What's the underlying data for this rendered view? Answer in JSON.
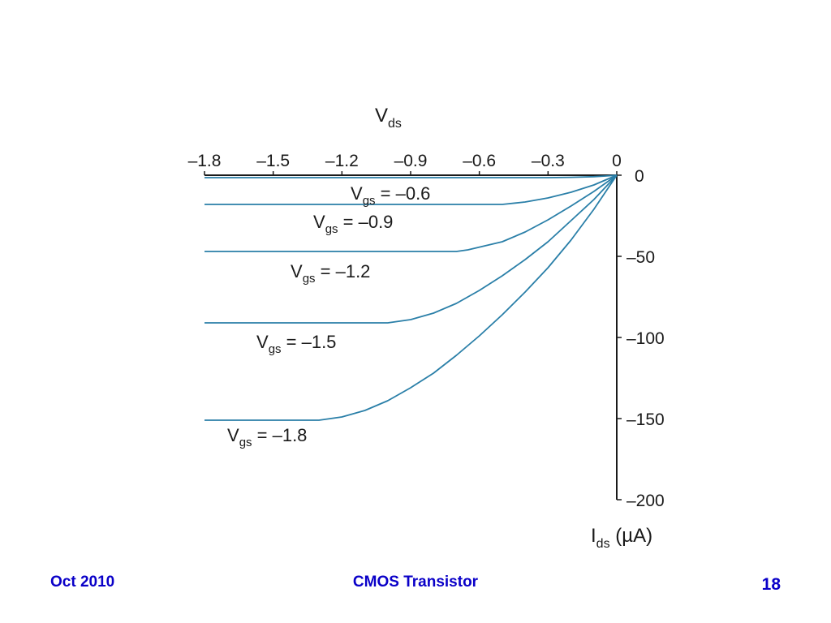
{
  "footer": {
    "date": "Oct 2010",
    "title": "CMOS Transistor",
    "page_number": "18"
  },
  "colors": {
    "curve": "#2a7fa8",
    "axis": "#1a1a1a",
    "footer": "#0a00c8"
  },
  "chart_data": {
    "type": "line",
    "x_axis": {
      "label_main": "V",
      "label_sub": "ds",
      "label_suffix": "",
      "range": [
        -1.8,
        0
      ],
      "position": "top",
      "ticks": [
        -1.8,
        -1.5,
        -1.2,
        -0.9,
        -0.6,
        -0.3,
        0
      ],
      "tick_labels": [
        "–1.8",
        "–1.5",
        "–1.2",
        "–0.9",
        "–0.6",
        "–0.3",
        "0"
      ]
    },
    "y_axis": {
      "label_main": "I",
      "label_sub": "ds",
      "label_suffix": " (µA)",
      "range": [
        -200,
        0
      ],
      "position": "right",
      "ticks": [
        0,
        -50,
        -100,
        -150,
        -200
      ],
      "tick_labels": [
        "0",
        "–50",
        "–100",
        "–150",
        "–200"
      ]
    },
    "legend": "none",
    "grid": false,
    "series": [
      {
        "label_main": "V",
        "label_sub": "gs",
        "label_value": " = –0.6",
        "x": [
          -1.8,
          -0.3,
          -0.2,
          -0.1,
          -0.05,
          0
        ],
        "y": [
          -1.5,
          -1.5,
          -1.3,
          -0.9,
          -0.5,
          0
        ]
      },
      {
        "label_main": "V",
        "label_sub": "gs",
        "label_value": " = –0.9",
        "x": [
          -1.8,
          -0.5,
          -0.4,
          -0.3,
          -0.2,
          -0.1,
          0
        ],
        "y": [
          -18,
          -18,
          -16.5,
          -14,
          -10.5,
          -6,
          0
        ]
      },
      {
        "label_main": "V",
        "label_sub": "gs",
        "label_value": " = –1.2",
        "x": [
          -1.8,
          -0.7,
          -0.65,
          -0.5,
          -0.4,
          -0.3,
          -0.2,
          -0.1,
          0
        ],
        "y": [
          -47,
          -47,
          -46,
          -41,
          -35,
          -27.5,
          -19,
          -10,
          0
        ]
      },
      {
        "label_main": "V",
        "label_sub": "gs",
        "label_value": " = –1.5",
        "x": [
          -1.8,
          -1.0,
          -0.9,
          -0.8,
          -0.7,
          -0.6,
          -0.5,
          -0.4,
          -0.3,
          -0.2,
          -0.1,
          0
        ],
        "y": [
          -91,
          -91,
          -89,
          -85,
          -79,
          -71,
          -62,
          -52,
          -41,
          -28,
          -15,
          0
        ]
      },
      {
        "label_main": "V",
        "label_sub": "gs",
        "label_value": " = –1.8",
        "x": [
          -1.8,
          -1.3,
          -1.2,
          -1.1,
          -1.0,
          -0.9,
          -0.8,
          -0.7,
          -0.6,
          -0.5,
          -0.4,
          -0.3,
          -0.2,
          -0.1,
          0
        ],
        "y": [
          -151,
          -151,
          -149,
          -145,
          -139,
          -131,
          -122,
          -111,
          -99,
          -86,
          -72,
          -57,
          -40,
          -21,
          0
        ]
      }
    ]
  }
}
